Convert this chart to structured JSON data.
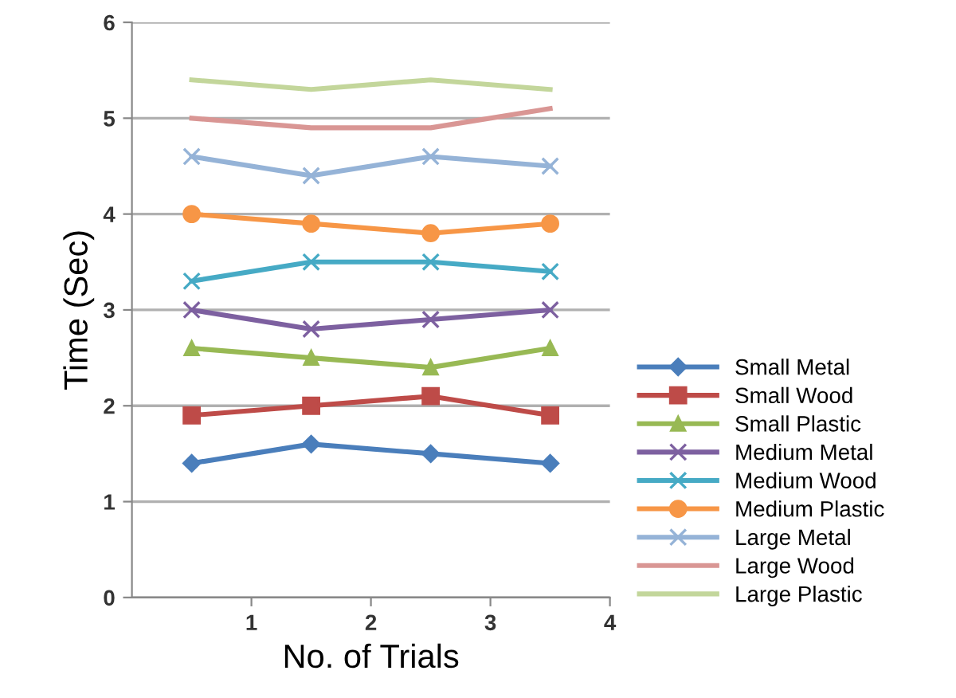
{
  "chart_data": {
    "type": "line",
    "xlabel": "No. of Trials",
    "ylabel": "Time (Sec)",
    "x": [
      0.5,
      1.5,
      2.5,
      3.5
    ],
    "xlim": [
      0,
      4
    ],
    "xticks": [
      1,
      2,
      3,
      4
    ],
    "ylim": [
      0,
      6
    ],
    "yticks": [
      0,
      1,
      2,
      3,
      4,
      5,
      6
    ],
    "grid": "y",
    "legend": "right",
    "line_style": "solid",
    "series": [
      {
        "name": "Small Metal",
        "color": "#4a7ebb",
        "marker": "diamond",
        "values": [
          1.4,
          1.6,
          1.5,
          1.4
        ]
      },
      {
        "name": "Small Wood",
        "color": "#be4b48",
        "marker": "square",
        "values": [
          1.9,
          2.0,
          2.1,
          1.9
        ]
      },
      {
        "name": "Small Plastic",
        "color": "#98b954",
        "marker": "triangle",
        "values": [
          2.6,
          2.5,
          2.4,
          2.6
        ]
      },
      {
        "name": "Medium Metal",
        "color": "#7d60a0",
        "marker": "cross",
        "values": [
          3.0,
          2.8,
          2.9,
          3.0
        ]
      },
      {
        "name": "Medium Wood",
        "color": "#46aac5",
        "marker": "cross",
        "values": [
          3.3,
          3.5,
          3.5,
          3.4
        ]
      },
      {
        "name": "Medium Plastic",
        "color": "#f79646",
        "marker": "circle",
        "values": [
          4.0,
          3.9,
          3.8,
          3.9
        ]
      },
      {
        "name": "Large Metal",
        "color": "#95b3d7",
        "marker": "cross",
        "values": [
          4.6,
          4.4,
          4.6,
          4.5
        ]
      },
      {
        "name": "Large Wood",
        "color": "#d99694",
        "marker": "none",
        "values": [
          5.0,
          4.9,
          4.9,
          5.1
        ]
      },
      {
        "name": "Large Plastic",
        "color": "#c3d69b",
        "marker": "none",
        "values": [
          5.4,
          5.3,
          5.4,
          5.3
        ]
      }
    ]
  }
}
